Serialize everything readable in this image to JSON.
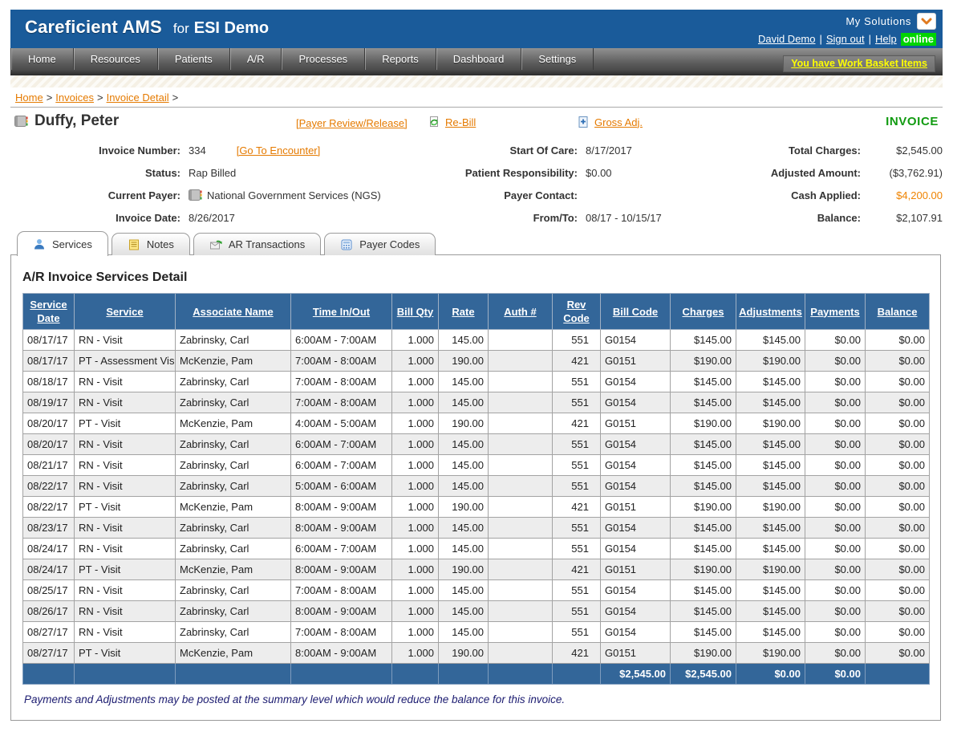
{
  "topbar": {
    "brand": "Careficient AMS",
    "brand_for": "for",
    "brand_client": "ESI Demo",
    "my_solutions_label": "My Solutions",
    "user_link": "David Demo",
    "signout_link": "Sign out",
    "help_link": "Help",
    "online_badge": "online"
  },
  "nav": {
    "items": [
      "Home",
      "Resources",
      "Patients",
      "A/R",
      "Processes",
      "Reports",
      "Dashboard",
      "Settings"
    ],
    "work_basket_link": "You have Work Basket Items"
  },
  "breadcrumb": {
    "home": "Home",
    "invoices": "Invoices",
    "detail": "Invoice Detail",
    "sep": ">"
  },
  "invoice_header": {
    "patient_name": "Duffy, Peter",
    "payer_review_link": "[Payer Review/Release]",
    "rebill_link": "Re-Bill",
    "gross_adj_link": "Gross Adj.",
    "doc_label": "INVOICE",
    "col1": [
      {
        "label": "Invoice Number:",
        "value": "334",
        "link": "[Go To Encounter]"
      },
      {
        "label": "Status:",
        "value": "Rap Billed"
      },
      {
        "label": "Current Payer:",
        "value": "National Government Services (NGS)"
      },
      {
        "label": "Invoice Date:",
        "value": "8/26/2017"
      }
    ],
    "col2": [
      {
        "label": "Start Of Care:",
        "value": "8/17/2017"
      },
      {
        "label": "Patient Responsibility:",
        "value": "$0.00"
      },
      {
        "label": "Payer Contact:",
        "value": ""
      },
      {
        "label": "From/To:",
        "value": "08/17 - 10/15/17"
      }
    ],
    "col3": [
      {
        "label": "Total Charges:",
        "value": "$2,545.00"
      },
      {
        "label": "Adjusted Amount:",
        "value": "($3,762.91)"
      },
      {
        "label": "Cash Applied:",
        "value": "$4,200.00"
      },
      {
        "label": "Balance:",
        "value": "$2,107.91"
      }
    ]
  },
  "tabs": [
    {
      "label": "Services",
      "active": true
    },
    {
      "label": "Notes",
      "active": false
    },
    {
      "label": "AR Transactions",
      "active": false
    },
    {
      "label": "Payer Codes",
      "active": false
    }
  ],
  "services": {
    "heading": "A/R Invoice Services Detail",
    "columns": [
      "Service Date",
      "Service",
      "Associate Name",
      "Time In/Out",
      "Bill Qty",
      "Rate",
      "Auth #",
      "Rev Code",
      "Bill Code",
      "Charges",
      "Adjustments",
      "Payments",
      "Balance"
    ],
    "rows": [
      [
        "08/17/17",
        "RN - Visit",
        "Zabrinsky, Carl",
        "6:00AM - 7:00AM",
        "1.000",
        "145.00",
        "",
        "551",
        "G0154",
        "$145.00",
        "$145.00",
        "$0.00",
        "$0.00"
      ],
      [
        "08/17/17",
        "PT - Assessment Visit",
        "McKenzie, Pam",
        "7:00AM - 8:00AM",
        "1.000",
        "190.00",
        "",
        "421",
        "G0151",
        "$190.00",
        "$190.00",
        "$0.00",
        "$0.00"
      ],
      [
        "08/18/17",
        "RN - Visit",
        "Zabrinsky, Carl",
        "7:00AM - 8:00AM",
        "1.000",
        "145.00",
        "",
        "551",
        "G0154",
        "$145.00",
        "$145.00",
        "$0.00",
        "$0.00"
      ],
      [
        "08/19/17",
        "RN - Visit",
        "Zabrinsky, Carl",
        "7:00AM - 8:00AM",
        "1.000",
        "145.00",
        "",
        "551",
        "G0154",
        "$145.00",
        "$145.00",
        "$0.00",
        "$0.00"
      ],
      [
        "08/20/17",
        "PT - Visit",
        "McKenzie, Pam",
        "4:00AM - 5:00AM",
        "1.000",
        "190.00",
        "",
        "421",
        "G0151",
        "$190.00",
        "$190.00",
        "$0.00",
        "$0.00"
      ],
      [
        "08/20/17",
        "RN - Visit",
        "Zabrinsky, Carl",
        "6:00AM - 7:00AM",
        "1.000",
        "145.00",
        "",
        "551",
        "G0154",
        "$145.00",
        "$145.00",
        "$0.00",
        "$0.00"
      ],
      [
        "08/21/17",
        "RN - Visit",
        "Zabrinsky, Carl",
        "6:00AM - 7:00AM",
        "1.000",
        "145.00",
        "",
        "551",
        "G0154",
        "$145.00",
        "$145.00",
        "$0.00",
        "$0.00"
      ],
      [
        "08/22/17",
        "RN - Visit",
        "Zabrinsky, Carl",
        "5:00AM - 6:00AM",
        "1.000",
        "145.00",
        "",
        "551",
        "G0154",
        "$145.00",
        "$145.00",
        "$0.00",
        "$0.00"
      ],
      [
        "08/22/17",
        "PT - Visit",
        "McKenzie, Pam",
        "8:00AM - 9:00AM",
        "1.000",
        "190.00",
        "",
        "421",
        "G0151",
        "$190.00",
        "$190.00",
        "$0.00",
        "$0.00"
      ],
      [
        "08/23/17",
        "RN - Visit",
        "Zabrinsky, Carl",
        "8:00AM - 9:00AM",
        "1.000",
        "145.00",
        "",
        "551",
        "G0154",
        "$145.00",
        "$145.00",
        "$0.00",
        "$0.00"
      ],
      [
        "08/24/17",
        "RN - Visit",
        "Zabrinsky, Carl",
        "6:00AM - 7:00AM",
        "1.000",
        "145.00",
        "",
        "551",
        "G0154",
        "$145.00",
        "$145.00",
        "$0.00",
        "$0.00"
      ],
      [
        "08/24/17",
        "PT - Visit",
        "McKenzie, Pam",
        "8:00AM - 9:00AM",
        "1.000",
        "190.00",
        "",
        "421",
        "G0151",
        "$190.00",
        "$190.00",
        "$0.00",
        "$0.00"
      ],
      [
        "08/25/17",
        "RN - Visit",
        "Zabrinsky, Carl",
        "7:00AM - 8:00AM",
        "1.000",
        "145.00",
        "",
        "551",
        "G0154",
        "$145.00",
        "$145.00",
        "$0.00",
        "$0.00"
      ],
      [
        "08/26/17",
        "RN - Visit",
        "Zabrinsky, Carl",
        "8:00AM - 9:00AM",
        "1.000",
        "145.00",
        "",
        "551",
        "G0154",
        "$145.00",
        "$145.00",
        "$0.00",
        "$0.00"
      ],
      [
        "08/27/17",
        "RN - Visit",
        "Zabrinsky, Carl",
        "7:00AM - 8:00AM",
        "1.000",
        "145.00",
        "",
        "551",
        "G0154",
        "$145.00",
        "$145.00",
        "$0.00",
        "$0.00"
      ],
      [
        "08/27/17",
        "PT - Visit",
        "McKenzie, Pam",
        "8:00AM - 9:00AM",
        "1.000",
        "190.00",
        "",
        "421",
        "G0151",
        "$190.00",
        "$190.00",
        "$0.00",
        "$0.00"
      ]
    ],
    "totals": {
      "bill_code_cell": "$2,545.00",
      "charges_cell": "$2,545.00",
      "adjustments_cell": "$0.00",
      "payments_cell": "$0.00",
      "balance_cell": ""
    },
    "note": "Payments and Adjustments may be posted at the summary level which would reduce the balance for this invoice."
  },
  "icons": {
    "my_solutions_chevron": "chevron-down",
    "patient_card": "address-book",
    "payer_card": "address-book",
    "rebill": "refresh-recycle",
    "gross_adj": "document-plus",
    "tab_services": "person",
    "tab_notes": "note-paper",
    "tab_ar_transactions": "mail-refresh",
    "tab_payer_codes": "code-grid"
  },
  "colors": {
    "header_blue": "#1a5b9a",
    "table_header_blue": "#336699",
    "link_orange": "#e57a00",
    "cash_orange": "#ef8300",
    "invoice_green": "#119b11",
    "online_green": "#00d400",
    "work_basket_yellow": "#ffff00",
    "note_navy": "#1b1b70",
    "alt_row_gray": "#ededed"
  }
}
